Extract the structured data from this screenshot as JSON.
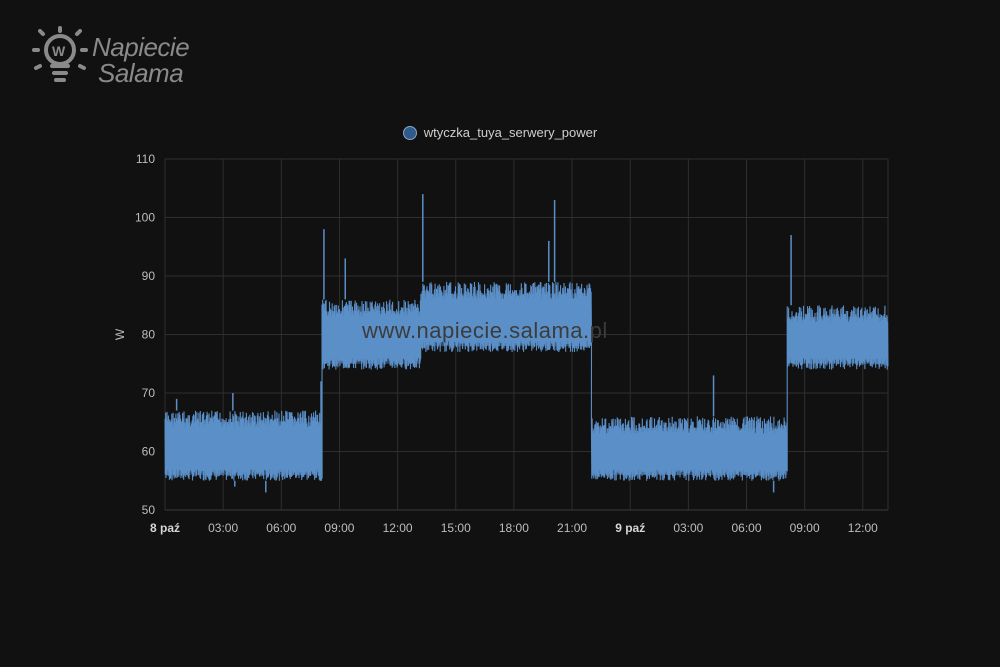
{
  "logo": {
    "line1": "Napiecie",
    "line2": "Salama"
  },
  "watermark": "www.napiecie.salama.pl",
  "colors": {
    "background": "#111111",
    "series": "#5b8fc7",
    "grid": "#2e2e2e",
    "text": "#bdbdbd"
  },
  "chart_data": {
    "type": "area",
    "ylabel": "W",
    "ylim": [
      50,
      110
    ],
    "yticks": [
      50,
      60,
      70,
      80,
      90,
      100,
      110
    ],
    "x_unit": "hours since 8 paź 00:00",
    "xlim": [
      0,
      37.3
    ],
    "xticks": [
      {
        "t": 0,
        "label": "8 paź",
        "bold": true
      },
      {
        "t": 3,
        "label": "03:00"
      },
      {
        "t": 6,
        "label": "06:00"
      },
      {
        "t": 9,
        "label": "09:00"
      },
      {
        "t": 12,
        "label": "12:00"
      },
      {
        "t": 15,
        "label": "15:00"
      },
      {
        "t": 18,
        "label": "18:00"
      },
      {
        "t": 21,
        "label": "21:00"
      },
      {
        "t": 24,
        "label": "9 paź",
        "bold": true
      },
      {
        "t": 27,
        "label": "03:00"
      },
      {
        "t": 30,
        "label": "06:00"
      },
      {
        "t": 33,
        "label": "09:00"
      },
      {
        "t": 36,
        "label": "12:00"
      }
    ],
    "grid": true,
    "legend_position": "top-center",
    "series": [
      {
        "name": "wtyczka_tuya_serwery_power",
        "segments": [
          {
            "start": 0.0,
            "end": 8.1,
            "low": 55,
            "high": 67
          },
          {
            "start": 8.1,
            "end": 13.2,
            "low": 74,
            "high": 86
          },
          {
            "start": 13.2,
            "end": 22.0,
            "low": 77,
            "high": 89
          },
          {
            "start": 22.0,
            "end": 32.1,
            "low": 55,
            "high": 66
          },
          {
            "start": 32.1,
            "end": 37.3,
            "low": 74,
            "high": 85
          }
        ],
        "spikes": [
          {
            "t": 8.2,
            "value": 98
          },
          {
            "t": 9.3,
            "value": 93
          },
          {
            "t": 13.3,
            "value": 104
          },
          {
            "t": 20.1,
            "value": 103
          },
          {
            "t": 19.8,
            "value": 96
          },
          {
            "t": 28.3,
            "value": 73
          },
          {
            "t": 32.3,
            "value": 97
          },
          {
            "t": 3.5,
            "value": 70
          },
          {
            "t": 0.6,
            "value": 69
          }
        ],
        "dips": [
          {
            "t": 3.6,
            "value": 54
          },
          {
            "t": 5.2,
            "value": 53
          },
          {
            "t": 31.4,
            "value": 53
          },
          {
            "t": 8.05,
            "value": 72
          }
        ]
      }
    ]
  }
}
